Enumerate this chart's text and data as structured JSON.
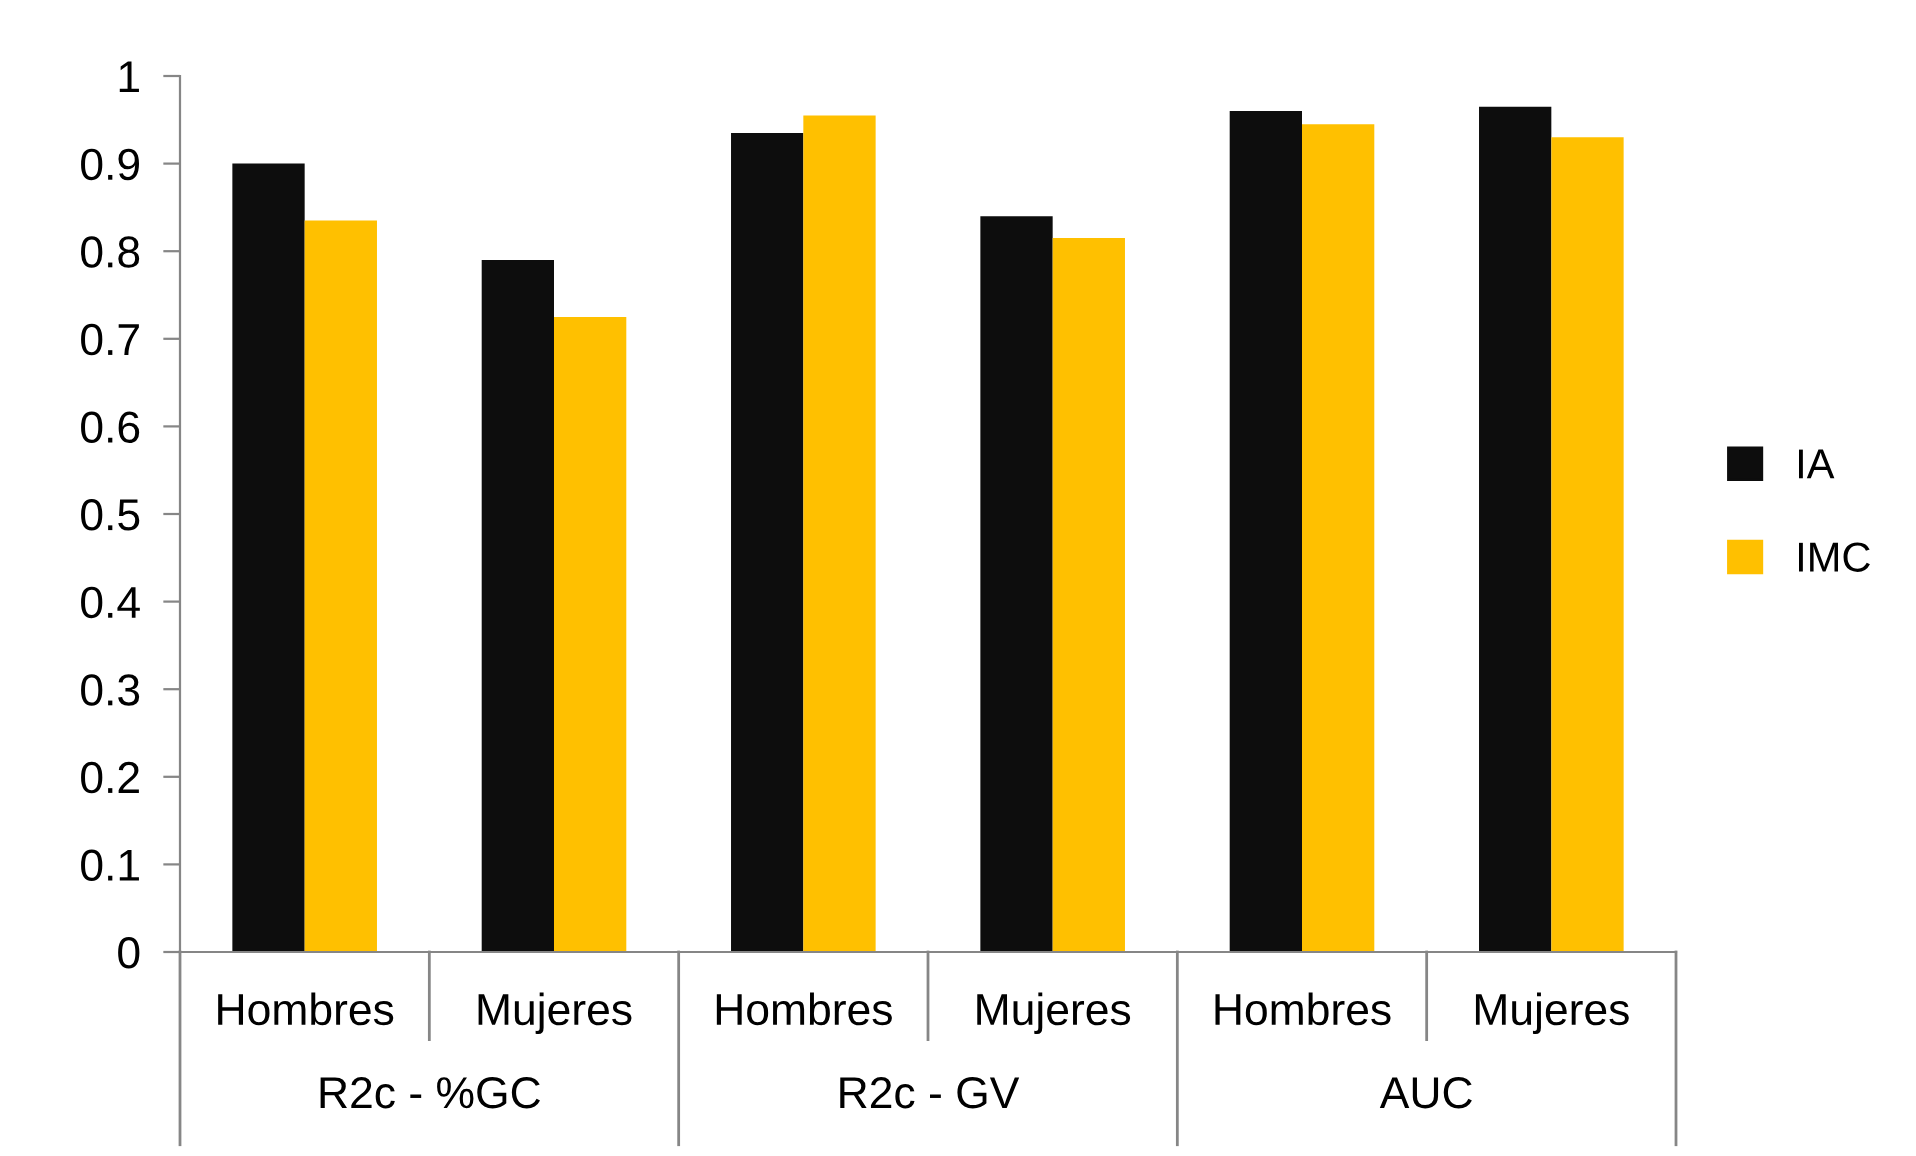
{
  "chart_data": {
    "type": "bar",
    "categories": [
      "Hombres",
      "Mujeres",
      "Hombres",
      "Mujeres",
      "Hombres",
      "Mujeres"
    ],
    "annotations": [
      "R2c - %GC",
      "R2c - GV",
      "AUC"
    ],
    "series": [
      {
        "name": "IA",
        "color": "#0d0d0d",
        "values": [
          0.9,
          0.79,
          0.935,
          0.84,
          0.96,
          0.965
        ]
      },
      {
        "name": "IMC",
        "color": "#ffc000",
        "values": [
          0.835,
          0.725,
          0.955,
          0.815,
          0.945,
          0.93
        ]
      }
    ],
    "ylim": [
      0,
      1
    ],
    "yticks": [
      0,
      0.1,
      0.2,
      0.3,
      0.4,
      0.5,
      0.6,
      0.7,
      0.8,
      0.9,
      1
    ],
    "grid": false,
    "legend": "right"
  }
}
